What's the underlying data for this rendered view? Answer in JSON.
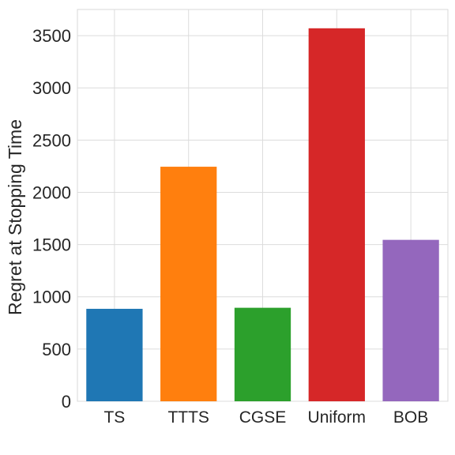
{
  "chart_data": {
    "type": "bar",
    "title": "",
    "xlabel": "",
    "ylabel": "Regret at Stopping Time",
    "categories": [
      "TS",
      "TTTS",
      "CGSE",
      "Uniform",
      "BOB"
    ],
    "values": [
      885,
      2245,
      895,
      3570,
      1545
    ],
    "colors": [
      "#1f77b4",
      "#ff7f0e",
      "#2ca02c",
      "#d62728",
      "#9467bd"
    ],
    "ylim": [
      0,
      3750
    ],
    "yticks": [
      0,
      500,
      1000,
      1500,
      2000,
      2500,
      3000,
      3500
    ],
    "ytick_labels": [
      "0",
      "500",
      "1000",
      "1500",
      "2000",
      "2500",
      "3000",
      "3500"
    ],
    "grid": true,
    "legend": "none"
  }
}
